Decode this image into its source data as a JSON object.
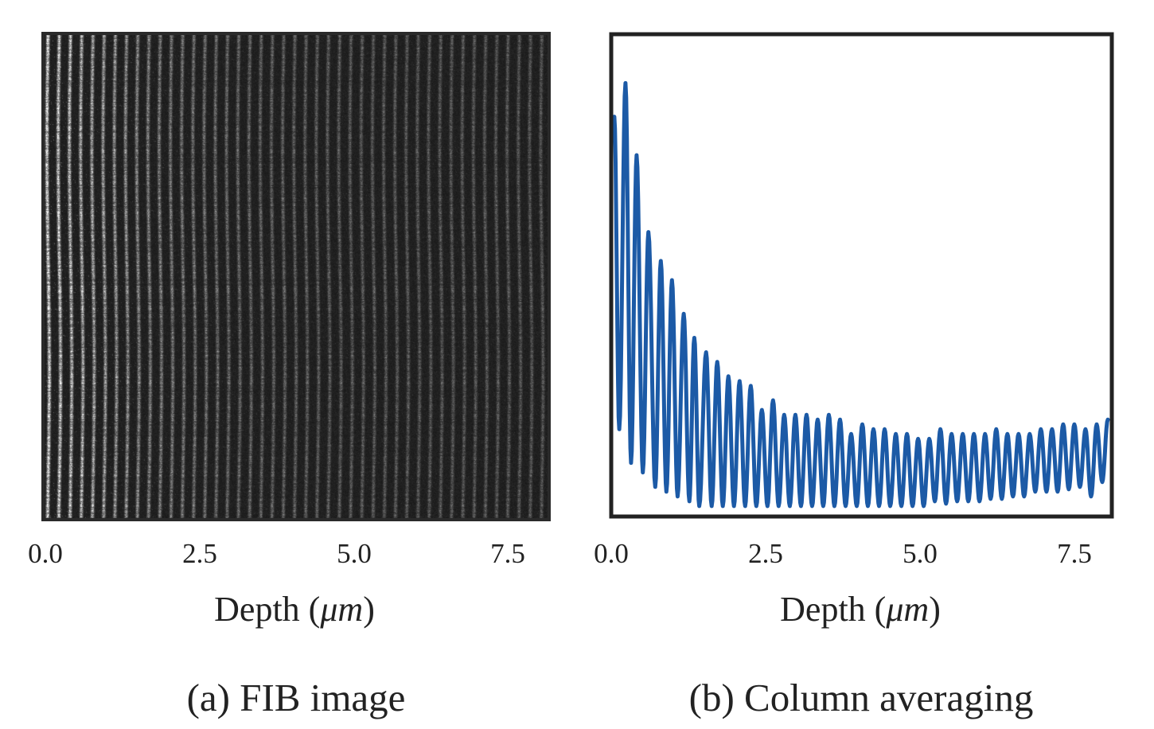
{
  "chart_data": [
    {
      "type": "image",
      "caption": "(a) FIB image",
      "xlabel": "Depth (μm)",
      "xticks": [
        "0.0",
        "2.5",
        "5.0",
        "7.5"
      ],
      "xlim": [
        0,
        8.1
      ],
      "colormap": "grayscale",
      "grid": false
    },
    {
      "type": "line",
      "caption": "(b) Column averaging",
      "xlabel": "Depth (μm)",
      "xticks": [
        "0.0",
        "2.5",
        "5.0",
        "7.5"
      ],
      "xlim": [
        0,
        8.1
      ],
      "ylim": [
        0,
        1
      ],
      "yticks": [],
      "grid": false,
      "line_color": "#1c5aa6",
      "series": [
        {
          "x": [
            0.05,
            0.13,
            0.23,
            0.32,
            0.41,
            0.51,
            0.6,
            0.71,
            0.8,
            0.89,
            0.98,
            1.07,
            1.17,
            1.26,
            1.34,
            1.42,
            1.53,
            1.62,
            1.71,
            1.8,
            1.89,
            1.98,
            2.07,
            2.16,
            2.25,
            2.34,
            2.43,
            2.52,
            2.61,
            2.7,
            2.79,
            2.88,
            2.97,
            3.06,
            3.15,
            3.24,
            3.33,
            3.42,
            3.51,
            3.6,
            3.69,
            3.78,
            3.87,
            3.96,
            4.05,
            4.14,
            4.23,
            4.32,
            4.41,
            4.5,
            4.59,
            4.68,
            4.77,
            4.86,
            4.95,
            5.04,
            5.13,
            5.22,
            5.31,
            5.4,
            5.49,
            5.58,
            5.67,
            5.76,
            5.85,
            5.94,
            6.03,
            6.12,
            6.21,
            6.3,
            6.39,
            6.48,
            6.57,
            6.66,
            6.75,
            6.84,
            6.93,
            7.02,
            7.11,
            7.2,
            7.29,
            7.38,
            7.47,
            7.56,
            7.65,
            7.74,
            7.83,
            7.92,
            8.01
          ],
          "y": [
            0.83,
            0.18,
            0.9,
            0.11,
            0.75,
            0.09,
            0.59,
            0.06,
            0.53,
            0.05,
            0.49,
            0.04,
            0.42,
            0.03,
            0.37,
            0.02,
            0.34,
            0.02,
            0.32,
            0.02,
            0.29,
            0.02,
            0.28,
            0.02,
            0.27,
            0.02,
            0.22,
            0.02,
            0.24,
            0.02,
            0.21,
            0.02,
            0.21,
            0.02,
            0.21,
            0.02,
            0.2,
            0.02,
            0.21,
            0.02,
            0.2,
            0.02,
            0.17,
            0.02,
            0.19,
            0.02,
            0.18,
            0.02,
            0.18,
            0.02,
            0.17,
            0.02,
            0.17,
            0.02,
            0.16,
            0.02,
            0.16,
            0.03,
            0.18,
            0.025,
            0.17,
            0.03,
            0.17,
            0.03,
            0.17,
            0.03,
            0.17,
            0.035,
            0.18,
            0.035,
            0.17,
            0.04,
            0.17,
            0.04,
            0.17,
            0.05,
            0.18,
            0.05,
            0.18,
            0.05,
            0.19,
            0.055,
            0.19,
            0.06,
            0.18,
            0.04,
            0.19,
            0.07,
            0.2
          ]
        }
      ]
    }
  ]
}
